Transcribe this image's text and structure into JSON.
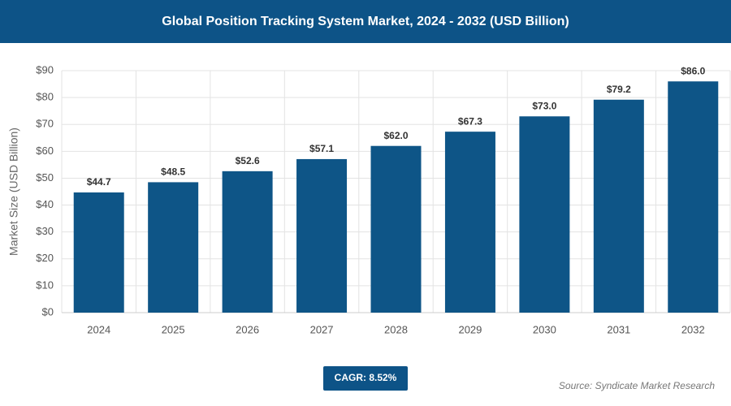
{
  "chart_data": {
    "type": "bar",
    "title": "Global Position Tracking System Market, 2024 - 2032 (USD Billion)",
    "y_label": "Market Size (USD Billion)",
    "categories": [
      "2024",
      "2025",
      "2026",
      "2027",
      "2028",
      "2029",
      "2030",
      "2031",
      "2032"
    ],
    "values": [
      44.7,
      48.5,
      52.6,
      57.1,
      62.0,
      67.3,
      73.0,
      79.2,
      86.0
    ],
    "value_labels": [
      "$44.7",
      "$48.5",
      "$52.6",
      "$57.1",
      "$62.0",
      "$67.3",
      "$73.0",
      "$79.2",
      "$86.0"
    ],
    "color": "#0e5587",
    "ylim": [
      0,
      90
    ],
    "yticks": [
      {
        "value": 0,
        "label": "$0"
      },
      {
        "value": 10,
        "label": "$10"
      },
      {
        "value": 20,
        "label": "$20"
      },
      {
        "value": 30,
        "label": "$30"
      },
      {
        "value": 40,
        "label": "$40"
      },
      {
        "value": 50,
        "label": "$50"
      },
      {
        "value": 60,
        "label": "$60"
      },
      {
        "value": 70,
        "label": "$70"
      },
      {
        "value": 80,
        "label": "$80"
      },
      {
        "value": 90,
        "label": "$90"
      }
    ],
    "grid": true,
    "annotation": "CAGR: 8.52%",
    "source": "Source: Syndicate Market Research"
  }
}
